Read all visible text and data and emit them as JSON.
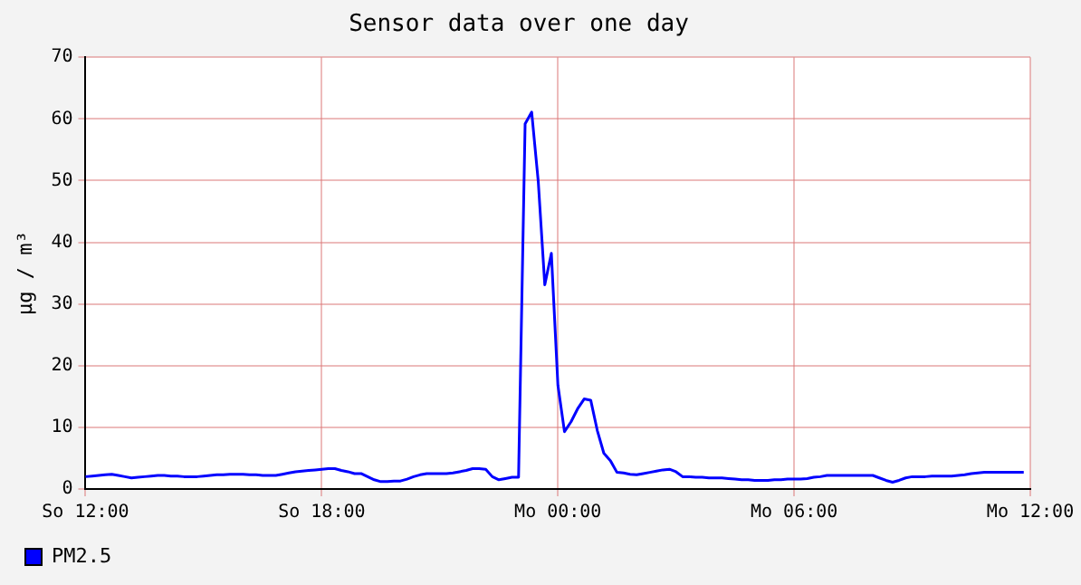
{
  "chart_data": {
    "type": "line",
    "title": "Sensor data over one day",
    "ylabel": "µg / m³",
    "categories": [
      "So 12:00",
      null,
      null,
      null,
      null,
      null,
      null,
      null,
      null,
      null,
      null,
      null,
      null,
      null,
      null,
      null,
      null,
      null,
      null,
      null,
      null,
      null,
      null,
      null,
      null,
      null,
      null,
      null,
      null,
      null,
      null,
      null,
      null,
      null,
      null,
      null,
      "So 18:00",
      null,
      null,
      null,
      null,
      null,
      null,
      null,
      null,
      null,
      null,
      null,
      null,
      null,
      null,
      null,
      null,
      null,
      null,
      null,
      null,
      null,
      null,
      null,
      null,
      null,
      null,
      null,
      null,
      null,
      null,
      null,
      null,
      null,
      null,
      null,
      "Mo 00:00",
      null,
      null,
      null,
      null,
      null,
      null,
      null,
      null,
      null,
      null,
      null,
      null,
      null,
      null,
      null,
      null,
      null,
      null,
      null,
      null,
      null,
      null,
      null,
      null,
      null,
      null,
      null,
      null,
      null,
      null,
      null,
      null,
      null,
      null,
      null,
      "Mo 06:00",
      null,
      null,
      null,
      null,
      null,
      null,
      null,
      null,
      null,
      null,
      null,
      null,
      null,
      null,
      null,
      null,
      null,
      null,
      null,
      null,
      null,
      null,
      null,
      null,
      null,
      null,
      null,
      null,
      null,
      null,
      null,
      null,
      null,
      null,
      null,
      "Mo 12:00"
    ],
    "ylim": [
      0,
      70
    ],
    "yticks": [
      0,
      10,
      20,
      30,
      40,
      50,
      60,
      70
    ],
    "grid": true,
    "legend": "bottom left",
    "marker": "none",
    "line_style": "solid",
    "series": [
      {
        "name": "PM2.5",
        "color": "#0000ff",
        "values": [
          2.0,
          2.1,
          2.2,
          2.3,
          2.4,
          2.2,
          2.0,
          1.8,
          1.9,
          2.0,
          2.1,
          2.2,
          2.2,
          2.1,
          2.1,
          2.0,
          2.0,
          2.0,
          2.1,
          2.2,
          2.3,
          2.3,
          2.4,
          2.4,
          2.4,
          2.3,
          2.3,
          2.2,
          2.2,
          2.2,
          2.4,
          2.6,
          2.8,
          2.9,
          3.0,
          3.1,
          3.2,
          3.3,
          3.3,
          3.0,
          2.8,
          2.5,
          2.5,
          2.0,
          1.5,
          1.2,
          1.2,
          1.3,
          1.3,
          1.6,
          2.0,
          2.3,
          2.5,
          2.5,
          2.5,
          2.5,
          2.6,
          2.8,
          3.0,
          3.3,
          3.3,
          3.2,
          2.0,
          1.5,
          1.7,
          1.9,
          1.9,
          59.2,
          61.1,
          49.9,
          33.1,
          38.2,
          16.8,
          9.3,
          10.9,
          13.0,
          14.6,
          14.4,
          9.5,
          5.8,
          4.6,
          2.7,
          2.6,
          2.4,
          2.3,
          2.5,
          2.7,
          2.9,
          3.1,
          3.2,
          2.8,
          2.0,
          2.0,
          1.9,
          1.9,
          1.8,
          1.8,
          1.8,
          1.7,
          1.6,
          1.5,
          1.5,
          1.4,
          1.4,
          1.4,
          1.5,
          1.5,
          1.6,
          1.6,
          1.6,
          1.7,
          1.9,
          2.0,
          2.2,
          2.2,
          2.2,
          2.2,
          2.2,
          2.2,
          2.2,
          2.2,
          1.8,
          1.4,
          1.1,
          1.4,
          1.8,
          2.0,
          2.0,
          2.0,
          2.1,
          2.1,
          2.1,
          2.1,
          2.2,
          2.3,
          2.5,
          2.6,
          2.7,
          2.7,
          2.7,
          2.7,
          2.7,
          2.7,
          2.7,
          null
        ]
      }
    ]
  }
}
